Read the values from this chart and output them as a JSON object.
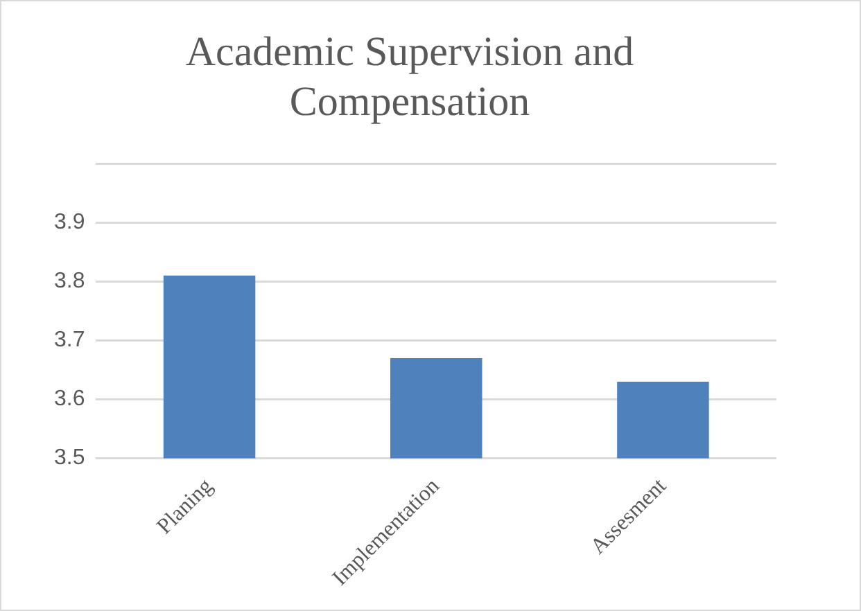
{
  "chart_data": {
    "type": "bar",
    "title": "Academic Supervision and Compensation",
    "categories": [
      "Planing",
      "Implementation",
      "Assesment"
    ],
    "values": [
      3.81,
      3.67,
      3.63
    ],
    "color": "#4f81bd",
    "ylim": [
      3.5,
      4.0
    ],
    "yticks": [
      3.5,
      3.6,
      3.7,
      3.8,
      3.9,
      {
        "value": 4.0,
        "label": null
      }
    ],
    "grid": "y",
    "legend": false
  }
}
